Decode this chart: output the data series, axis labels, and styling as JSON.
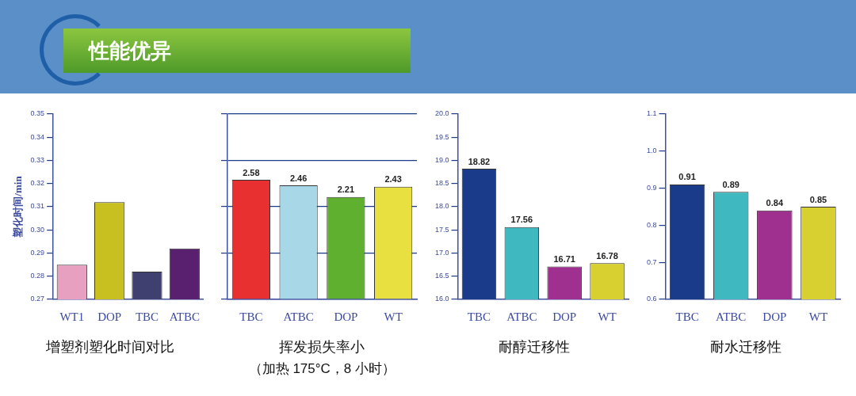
{
  "chart_data": [
    {
      "type": "other",
      "title": "性能优异"
    },
    {
      "type": "bar",
      "title": "增塑剂塑化时间对比",
      "ylabel": "塑化时间/min",
      "categories": [
        "WT1",
        "DOP",
        "TBC",
        "ATBC"
      ],
      "values": [
        0.285,
        0.312,
        0.282,
        0.292
      ],
      "colors": [
        "#e8a0c0",
        "#c8c020",
        "#404070",
        "#5a2070"
      ],
      "ylim": [
        0.27,
        0.35
      ],
      "yticks": [
        0.27,
        0.28,
        0.29,
        {
          "value": 0.3,
          "label": "0.30"
        },
        0.31,
        0.32,
        0.33,
        0.34,
        0.35
      ]
    },
    {
      "type": "bar",
      "title": "挥发损失率小",
      "subtitle": "（加热 175°C，8 小时）",
      "categories": [
        "TBC",
        "ATBC",
        "DOP",
        "WT"
      ],
      "values": [
        2.58,
        2.46,
        2.21,
        2.43
      ],
      "colors": [
        "#e83030",
        "#a8d8e8",
        "#60b030",
        "#e8e040"
      ],
      "ylim": [
        0,
        4
      ],
      "yticks": [
        {
          "value": 0,
          "label": null
        },
        {
          "value": 1,
          "label": null
        },
        {
          "value": 2,
          "label": null
        },
        {
          "value": 3,
          "label": null
        },
        {
          "value": 4,
          "label": null
        }
      ],
      "grid": "y",
      "tick_labels": "x",
      "data_labels": true
    },
    {
      "type": "bar",
      "title": "耐醇迁移性",
      "categories": [
        "TBC",
        "ATBC",
        "DOP",
        "WT"
      ],
      "values": [
        18.82,
        17.56,
        16.71,
        16.78
      ],
      "colors": [
        "#1a3a8a",
        "#40b8c0",
        "#a03090",
        "#d8d030"
      ],
      "ylim": [
        16,
        20
      ],
      "yticks": [
        {
          "value": 16,
          "label": "16.0"
        },
        16.5,
        {
          "value": 17,
          "label": "17.0"
        },
        17.5,
        {
          "value": 18,
          "label": "18.0"
        },
        18.5,
        {
          "value": 19,
          "label": "19.0"
        },
        19.5,
        {
          "value": 20,
          "label": "20.0"
        }
      ],
      "data_labels": true
    },
    {
      "type": "bar",
      "title": "耐水迁移性",
      "categories": [
        "TBC",
        "ATBC",
        "DOP",
        "WT"
      ],
      "values": [
        0.91,
        0.89,
        0.84,
        0.85
      ],
      "colors": [
        "#1a3a8a",
        "#40b8c0",
        "#a03090",
        "#d8d030"
      ],
      "ylim": [
        0.6,
        1.1
      ],
      "yticks": [
        0.6,
        0.7,
        0.8,
        0.9,
        {
          "value": 1,
          "label": "1.0"
        },
        1.1
      ],
      "data_labels": true
    }
  ]
}
